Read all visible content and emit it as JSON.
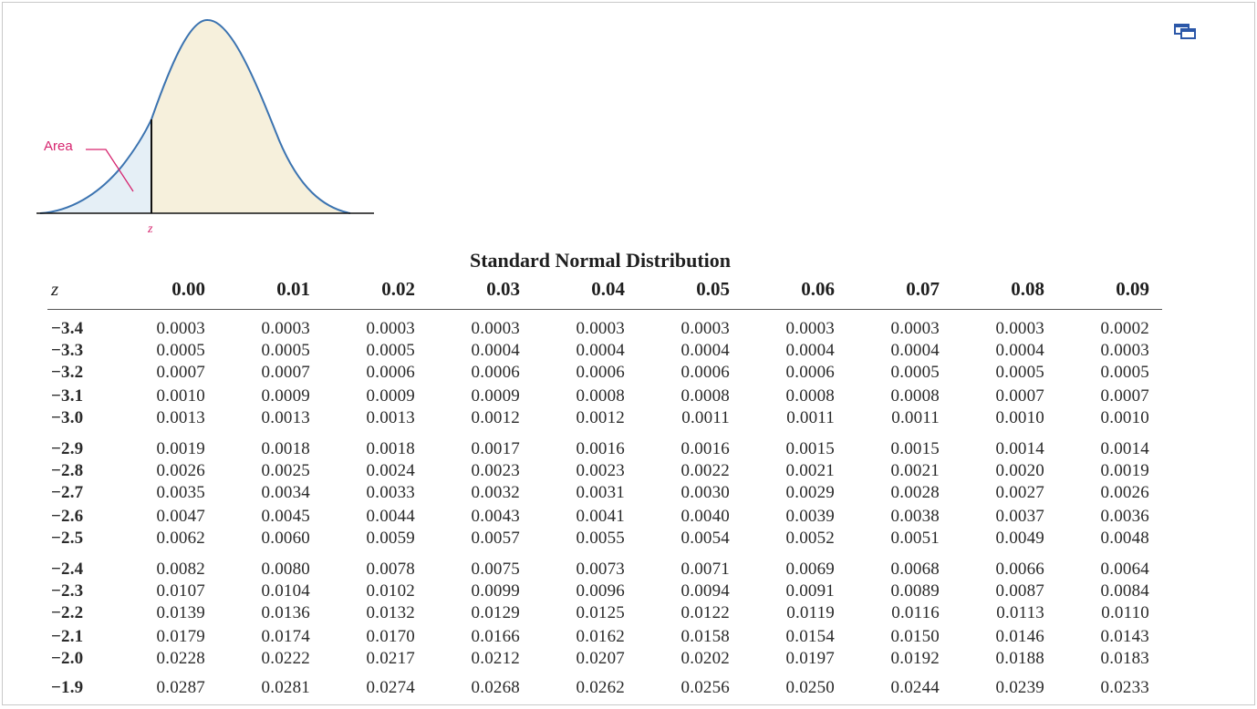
{
  "figure": {
    "area_label": "Area",
    "z_label": "z"
  },
  "table": {
    "title": "Standard Normal Distribution",
    "z_header": "z",
    "headers": [
      "0.00",
      "0.01",
      "0.02",
      "0.03",
      "0.04",
      "0.05",
      "0.06",
      "0.07",
      "0.08",
      "0.09"
    ],
    "rows": [
      {
        "z": "−3.4",
        "values": [
          "0.0003",
          "0.0003",
          "0.0003",
          "0.0003",
          "0.0003",
          "0.0003",
          "0.0003",
          "0.0003",
          "0.0003",
          "0.0002"
        ]
      },
      {
        "z": "−3.3",
        "values": [
          "0.0005",
          "0.0005",
          "0.0005",
          "0.0004",
          "0.0004",
          "0.0004",
          "0.0004",
          "0.0004",
          "0.0004",
          "0.0003"
        ]
      },
      {
        "z": "−3.2",
        "values": [
          "0.0007",
          "0.0007",
          "0.0006",
          "0.0006",
          "0.0006",
          "0.0006",
          "0.0006",
          "0.0005",
          "0.0005",
          "0.0005"
        ]
      },
      {
        "z": "−3.1",
        "values": [
          "0.0010",
          "0.0009",
          "0.0009",
          "0.0009",
          "0.0008",
          "0.0008",
          "0.0008",
          "0.0008",
          "0.0007",
          "0.0007"
        ]
      },
      {
        "z": "−3.0",
        "values": [
          "0.0013",
          "0.0013",
          "0.0013",
          "0.0012",
          "0.0012",
          "0.0011",
          "0.0011",
          "0.0011",
          "0.0010",
          "0.0010"
        ]
      },
      {
        "z": "−2.9",
        "values": [
          "0.0019",
          "0.0018",
          "0.0018",
          "0.0017",
          "0.0016",
          "0.0016",
          "0.0015",
          "0.0015",
          "0.0014",
          "0.0014"
        ]
      },
      {
        "z": "−2.8",
        "values": [
          "0.0026",
          "0.0025",
          "0.0024",
          "0.0023",
          "0.0023",
          "0.0022",
          "0.0021",
          "0.0021",
          "0.0020",
          "0.0019"
        ]
      },
      {
        "z": "−2.7",
        "values": [
          "0.0035",
          "0.0034",
          "0.0033",
          "0.0032",
          "0.0031",
          "0.0030",
          "0.0029",
          "0.0028",
          "0.0027",
          "0.0026"
        ]
      },
      {
        "z": "−2.6",
        "values": [
          "0.0047",
          "0.0045",
          "0.0044",
          "0.0043",
          "0.0041",
          "0.0040",
          "0.0039",
          "0.0038",
          "0.0037",
          "0.0036"
        ]
      },
      {
        "z": "−2.5",
        "values": [
          "0.0062",
          "0.0060",
          "0.0059",
          "0.0057",
          "0.0055",
          "0.0054",
          "0.0052",
          "0.0051",
          "0.0049",
          "0.0048"
        ]
      },
      {
        "z": "−2.4",
        "values": [
          "0.0082",
          "0.0080",
          "0.0078",
          "0.0075",
          "0.0073",
          "0.0071",
          "0.0069",
          "0.0068",
          "0.0066",
          "0.0064"
        ]
      },
      {
        "z": "−2.3",
        "values": [
          "0.0107",
          "0.0104",
          "0.0102",
          "0.0099",
          "0.0096",
          "0.0094",
          "0.0091",
          "0.0089",
          "0.0087",
          "0.0084"
        ]
      },
      {
        "z": "−2.2",
        "values": [
          "0.0139",
          "0.0136",
          "0.0132",
          "0.0129",
          "0.0125",
          "0.0122",
          "0.0119",
          "0.0116",
          "0.0113",
          "0.0110"
        ]
      },
      {
        "z": "−2.1",
        "values": [
          "0.0179",
          "0.0174",
          "0.0170",
          "0.0166",
          "0.0162",
          "0.0158",
          "0.0154",
          "0.0150",
          "0.0146",
          "0.0143"
        ]
      },
      {
        "z": "−2.0",
        "values": [
          "0.0228",
          "0.0222",
          "0.0217",
          "0.0212",
          "0.0207",
          "0.0202",
          "0.0197",
          "0.0192",
          "0.0188",
          "0.0183"
        ]
      },
      {
        "z": "−1.9",
        "values": [
          "0.0287",
          "0.0281",
          "0.0274",
          "0.0268",
          "0.0262",
          "0.0256",
          "0.0250",
          "0.0244",
          "0.0239",
          "0.0233"
        ]
      }
    ]
  },
  "icons": {
    "popout": "popout-window-icon"
  }
}
